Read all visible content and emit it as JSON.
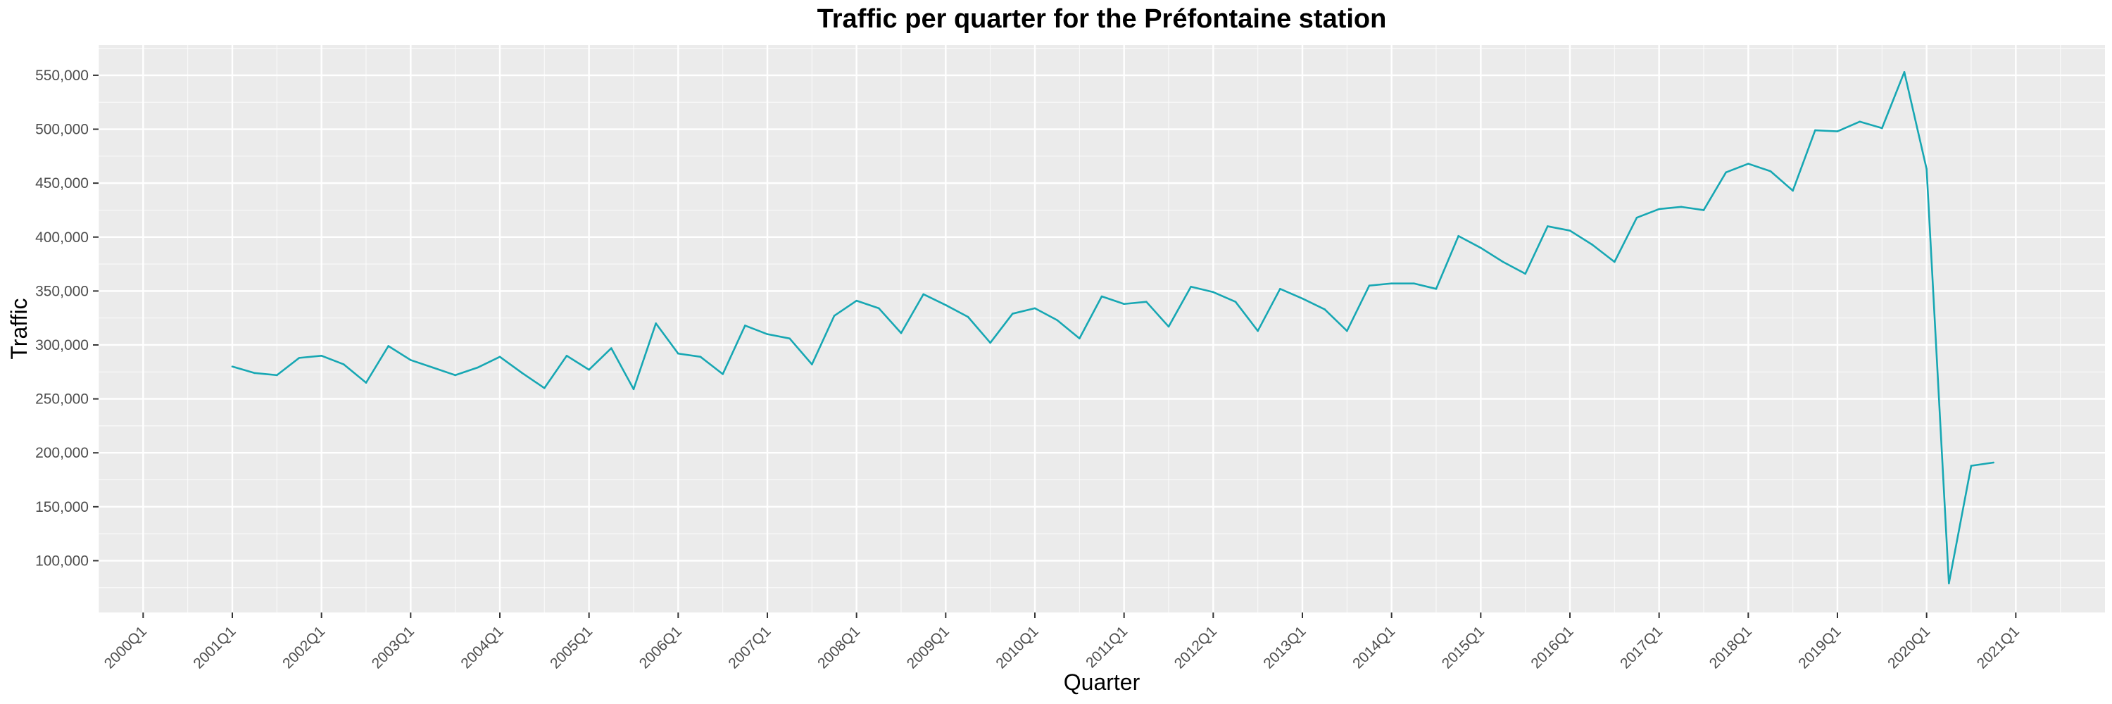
{
  "chart_data": {
    "type": "line",
    "title": "Traffic per quarter for the Préfontaine station",
    "xlabel": "Quarter",
    "ylabel": "Traffic",
    "x_tick_labels": [
      "2000Q1",
      "2001Q1",
      "2002Q1",
      "2003Q1",
      "2004Q1",
      "2005Q1",
      "2006Q1",
      "2007Q1",
      "2008Q1",
      "2009Q1",
      "2010Q1",
      "2011Q1",
      "2012Q1",
      "2013Q1",
      "2014Q1",
      "2015Q1",
      "2016Q1",
      "2017Q1",
      "2018Q1",
      "2019Q1",
      "2020Q1",
      "2021Q1"
    ],
    "y_tick_labels": [
      "100,000",
      "150,000",
      "200,000",
      "250,000",
      "300,000",
      "350,000",
      "400,000",
      "450,000",
      "500,000",
      "550,000"
    ],
    "y_ticks": [
      100000,
      150000,
      200000,
      250000,
      300000,
      350000,
      400000,
      450000,
      500000,
      550000
    ],
    "ylim": [
      52000,
      578000
    ],
    "xlim": [
      "2000Q1",
      "2021Q4"
    ],
    "grid": true,
    "line_color": "#17a7b3",
    "panel_color": "#ebebeb",
    "grid_color": "#ffffff",
    "series": [
      {
        "x": [
          "2001Q1",
          "2001Q2",
          "2001Q3",
          "2001Q4",
          "2002Q1",
          "2002Q2",
          "2002Q3",
          "2002Q4",
          "2003Q1",
          "2003Q2",
          "2003Q3",
          "2003Q4",
          "2004Q1",
          "2004Q2",
          "2004Q3",
          "2004Q4",
          "2005Q1",
          "2005Q2",
          "2005Q3",
          "2005Q4",
          "2006Q1",
          "2006Q2",
          "2006Q3",
          "2006Q4",
          "2007Q1",
          "2007Q2",
          "2007Q3",
          "2007Q4",
          "2008Q1",
          "2008Q2",
          "2008Q3",
          "2008Q4",
          "2009Q1",
          "2009Q2",
          "2009Q3",
          "2009Q4",
          "2010Q1",
          "2010Q2",
          "2010Q3",
          "2010Q4",
          "2011Q1",
          "2011Q2",
          "2011Q3",
          "2011Q4",
          "2012Q1",
          "2012Q2",
          "2012Q3",
          "2012Q4",
          "2013Q1",
          "2013Q2",
          "2013Q3",
          "2013Q4",
          "2014Q1",
          "2014Q2",
          "2014Q3",
          "2014Q4",
          "2015Q1",
          "2015Q2",
          "2015Q3",
          "2015Q4",
          "2016Q1",
          "2016Q2",
          "2016Q3",
          "2016Q4",
          "2017Q1",
          "2017Q2",
          "2017Q3",
          "2017Q4",
          "2018Q1",
          "2018Q2",
          "2018Q3",
          "2018Q4",
          "2019Q1",
          "2019Q2",
          "2019Q3",
          "2019Q4",
          "2020Q1",
          "2020Q2",
          "2020Q3",
          "2020Q4"
        ],
        "values": [
          280000,
          274000,
          272000,
          288000,
          290000,
          282000,
          265000,
          299000,
          286000,
          279000,
          272000,
          279000,
          289000,
          274000,
          260000,
          290000,
          277000,
          297000,
          259000,
          320000,
          292000,
          289000,
          273000,
          318000,
          310000,
          306000,
          282000,
          327000,
          341000,
          334000,
          311000,
          347000,
          337000,
          326000,
          302000,
          329000,
          334000,
          323000,
          306000,
          345000,
          338000,
          340000,
          317000,
          354000,
          349000,
          340000,
          313000,
          352000,
          343000,
          333000,
          313000,
          355000,
          357000,
          357000,
          352000,
          401000,
          390000,
          377000,
          366000,
          410000,
          406000,
          393000,
          377000,
          418000,
          426000,
          428000,
          425000,
          460000,
          468000,
          461000,
          443000,
          499000,
          498000,
          507000,
          501000,
          553000,
          463000,
          79000,
          188000,
          191000
        ]
      }
    ]
  }
}
